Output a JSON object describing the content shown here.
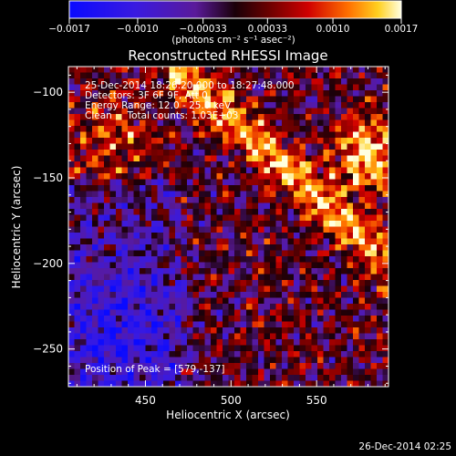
{
  "chart_data": {
    "type": "heatmap",
    "title": "Reconstructed RHESSI Image",
    "xlabel": "Heliocentric X (arcsec)",
    "ylabel": "Heliocentric Y (arcsec)",
    "xlim": [
      405,
      592
    ],
    "ylim": [
      -272,
      -85
    ],
    "xticks": [
      450,
      500,
      550
    ],
    "yticks": [
      -100,
      -150,
      -200,
      -250
    ],
    "colorbar": {
      "min": -0.0017,
      "max": 0.0017,
      "tick_values": [
        -0.0017,
        -0.001,
        -0.00033,
        0.00033,
        0.001,
        0.0017
      ],
      "tick_labels": [
        "-0.0017",
        "-0.0010",
        "-0.00033",
        "0.00033",
        "0.0010",
        "0.0017"
      ],
      "unit_label": "(photons cm⁻² s⁻¹ asec⁻²)"
    },
    "annotations": [
      "25-Dec-2014 18:26:20.000 to 18:27:48.000",
      "Detectors: 3F 6F 9F, Att 0",
      "Energy Range: 12.0 - 25.0 keV",
      "Clean     Total counts: 1.03E+03"
    ],
    "peak_label": "Position of Peak = [579,-137]",
    "peak": [
      579,
      -137
    ],
    "grid": false
  },
  "footer": {
    "timestamp": "26-Dec-2014 02:25"
  }
}
